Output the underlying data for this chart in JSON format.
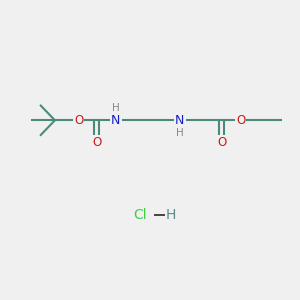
{
  "bg_color": "#f0f0f0",
  "bond_color": "#4a8a7a",
  "N_color": "#1a1acc",
  "O_color": "#cc1a1a",
  "H_color": "#888888",
  "Cl_color": "#44cc44",
  "H_dash_color": "#5a8a8a",
  "line_width": 1.5,
  "font_size_atom": 8.5,
  "font_size_HCl": 10,
  "fig_size": [
    3.0,
    3.0
  ],
  "dpi": 100,
  "xlim": [
    0,
    10
  ],
  "ylim": [
    0,
    10
  ],
  "sy": 6.0,
  "hcl_y": 2.8,
  "hcl_x": 5.0
}
